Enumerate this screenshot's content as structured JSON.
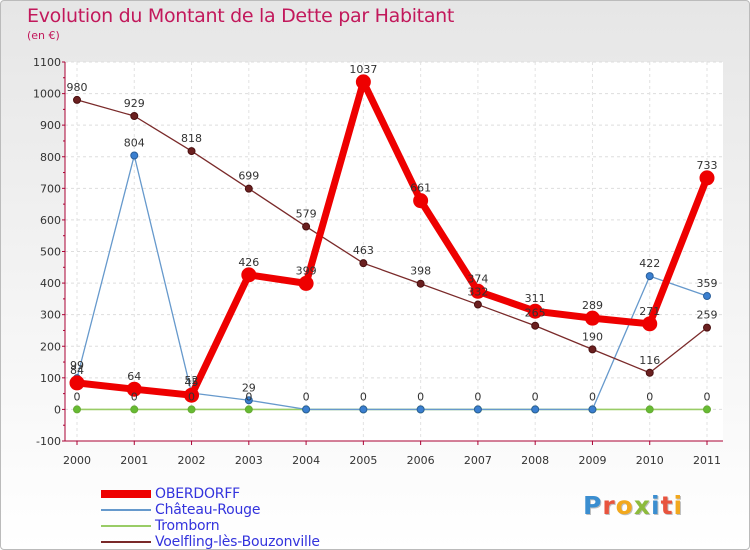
{
  "chart_data": {
    "type": "line",
    "title": "Evolution du Montant de la Dette par Habitant",
    "subtitle": "(en €)",
    "xlabel": "",
    "ylabel": "",
    "categories": [
      "2000",
      "2001",
      "2002",
      "2003",
      "2004",
      "2005",
      "2006",
      "2007",
      "2008",
      "2009",
      "2010",
      "2011"
    ],
    "ylim": [
      -100,
      1100
    ],
    "yticks": [
      "-100",
      "0",
      "100",
      "200",
      "300",
      "400",
      "500",
      "600",
      "700",
      "800",
      "900",
      "1000",
      "1100"
    ],
    "grid": "horizontal",
    "series": [
      {
        "name": "OBERDORFF",
        "color": "#ee0000",
        "values": [
          84,
          64,
          45,
          426,
          399,
          1037,
          661,
          374,
          311,
          289,
          271,
          733
        ],
        "labels": [
          "84",
          "64",
          "45",
          "426",
          "399",
          "1037",
          "661",
          "374",
          "311",
          "289",
          "271",
          "733"
        ]
      },
      {
        "name": "Château-Rouge",
        "color": "#6699cc",
        "values": [
          99,
          804,
          52,
          29,
          0,
          0,
          0,
          0,
          0,
          0,
          422,
          359
        ],
        "labels": [
          "99",
          "804",
          "52",
          "29",
          "0",
          "0",
          "0",
          "0",
          "0",
          "0",
          "422",
          "359"
        ]
      },
      {
        "name": "Tromborn",
        "color": "#99cc66",
        "values": [
          0,
          0,
          0,
          0,
          0,
          0,
          0,
          0,
          0,
          0,
          0,
          0
        ],
        "labels": [
          "0",
          "0",
          "0",
          "0",
          "",
          "",
          "",
          "",
          "",
          "",
          "0",
          "0"
        ]
      },
      {
        "name": "Voelfling-lès-Bouzonville",
        "color": "#7a2a2a",
        "values": [
          980,
          929,
          818,
          699,
          579,
          463,
          398,
          332,
          265,
          190,
          116,
          259
        ],
        "labels": [
          "980",
          "929",
          "818",
          "699",
          "579",
          "463",
          "398",
          "332",
          "265",
          "190",
          "116",
          "259"
        ]
      }
    ]
  },
  "logo": {
    "text": "Proxiti",
    "colors": [
      "#3b8ed0",
      "#e8543e",
      "#f2a81d",
      "#8dbb3d",
      "#3b8ed0",
      "#e8543e",
      "#f2a81d"
    ]
  }
}
